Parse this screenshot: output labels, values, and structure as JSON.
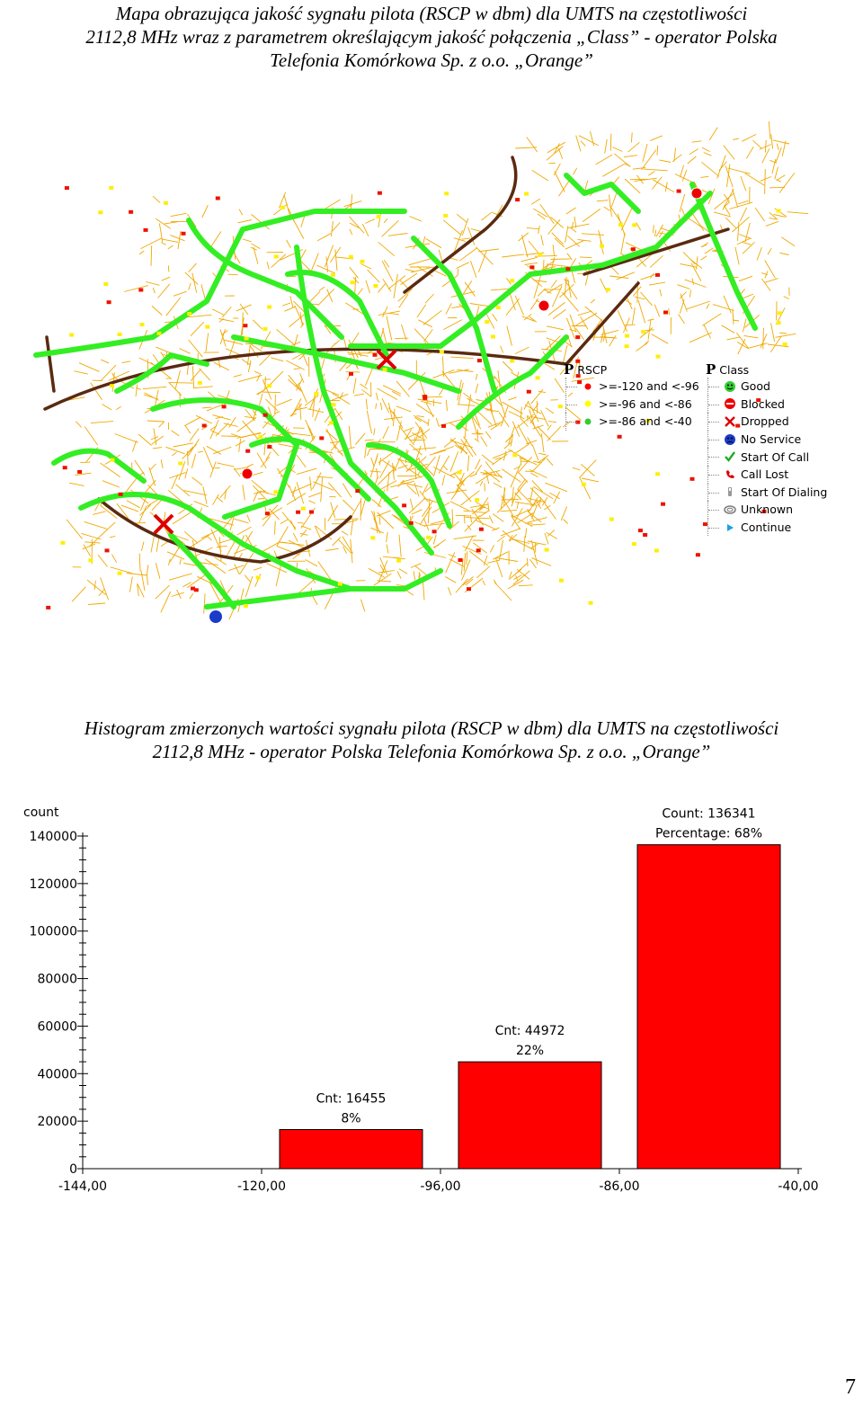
{
  "caption_map": {
    "line1": "Mapa obrazująca jakość sygnału pilota (RSCP w dbm) dla UMTS na częstotliwości",
    "line2": "2112,8 MHz wraz z parametrem określającym jakość połączenia „Class” - operator Polska",
    "line3": "Telefonia Komórkowa Sp. z o.o. „Orange”"
  },
  "legend_rscp": {
    "title": "RSCP",
    "items": [
      {
        "label": ">=-120 and <-96",
        "color": "#ff0000"
      },
      {
        "label": ">=-96 and <-86",
        "color": "#ffff00"
      },
      {
        "label": ">=-86 and <-40",
        "color": "#33cc33"
      }
    ]
  },
  "legend_class": {
    "title": "Class",
    "items": [
      {
        "label": "Good",
        "icon": "smiley-good-icon"
      },
      {
        "label": "Blocked",
        "icon": "blocked-icon"
      },
      {
        "label": "Dropped",
        "icon": "dropped-x-icon"
      },
      {
        "label": "No Service",
        "icon": "no-service-icon"
      },
      {
        "label": "Start Of Call",
        "icon": "check-icon"
      },
      {
        "label": "Call Lost",
        "icon": "call-lost-icon"
      },
      {
        "label": "Start Of Dialing",
        "icon": "phone-icon"
      },
      {
        "label": "Unknown",
        "icon": "unknown-icon"
      },
      {
        "label": "Continue",
        "icon": "play-icon"
      }
    ]
  },
  "caption_histogram": {
    "line1": "Histogram zmierzonych wartości sygnału pilota (RSCP w dbm) dla UMTS na częstotliwości",
    "line2": "2112,8 MHz - operator Polska Telefonia Komórkowa Sp. z o.o. „Orange”"
  },
  "chart_data": {
    "type": "bar",
    "ylabel": "count",
    "xlabel": "",
    "x_ticks": [
      "-144,00",
      "-120,00",
      "-96,00",
      "-86,00",
      "-40,00"
    ],
    "y_ticks": [
      "0",
      "20000",
      "40000",
      "60000",
      "80000",
      "100000",
      "120000",
      "140000"
    ],
    "ylim": [
      0,
      140000
    ],
    "bar_color": "#ff0000",
    "bars": [
      {
        "from": -120,
        "to": -96,
        "value": 16455,
        "label1": "Cnt: 16455",
        "label2": "8%"
      },
      {
        "from": -96,
        "to": -86,
        "value": 44972,
        "label1": "Cnt: 44972",
        "label2": "22%"
      },
      {
        "from": -86,
        "to": -40,
        "value": 136341,
        "label1": "Count: 136341",
        "label2": "Percentage: 68%"
      }
    ]
  },
  "page_number": "7"
}
